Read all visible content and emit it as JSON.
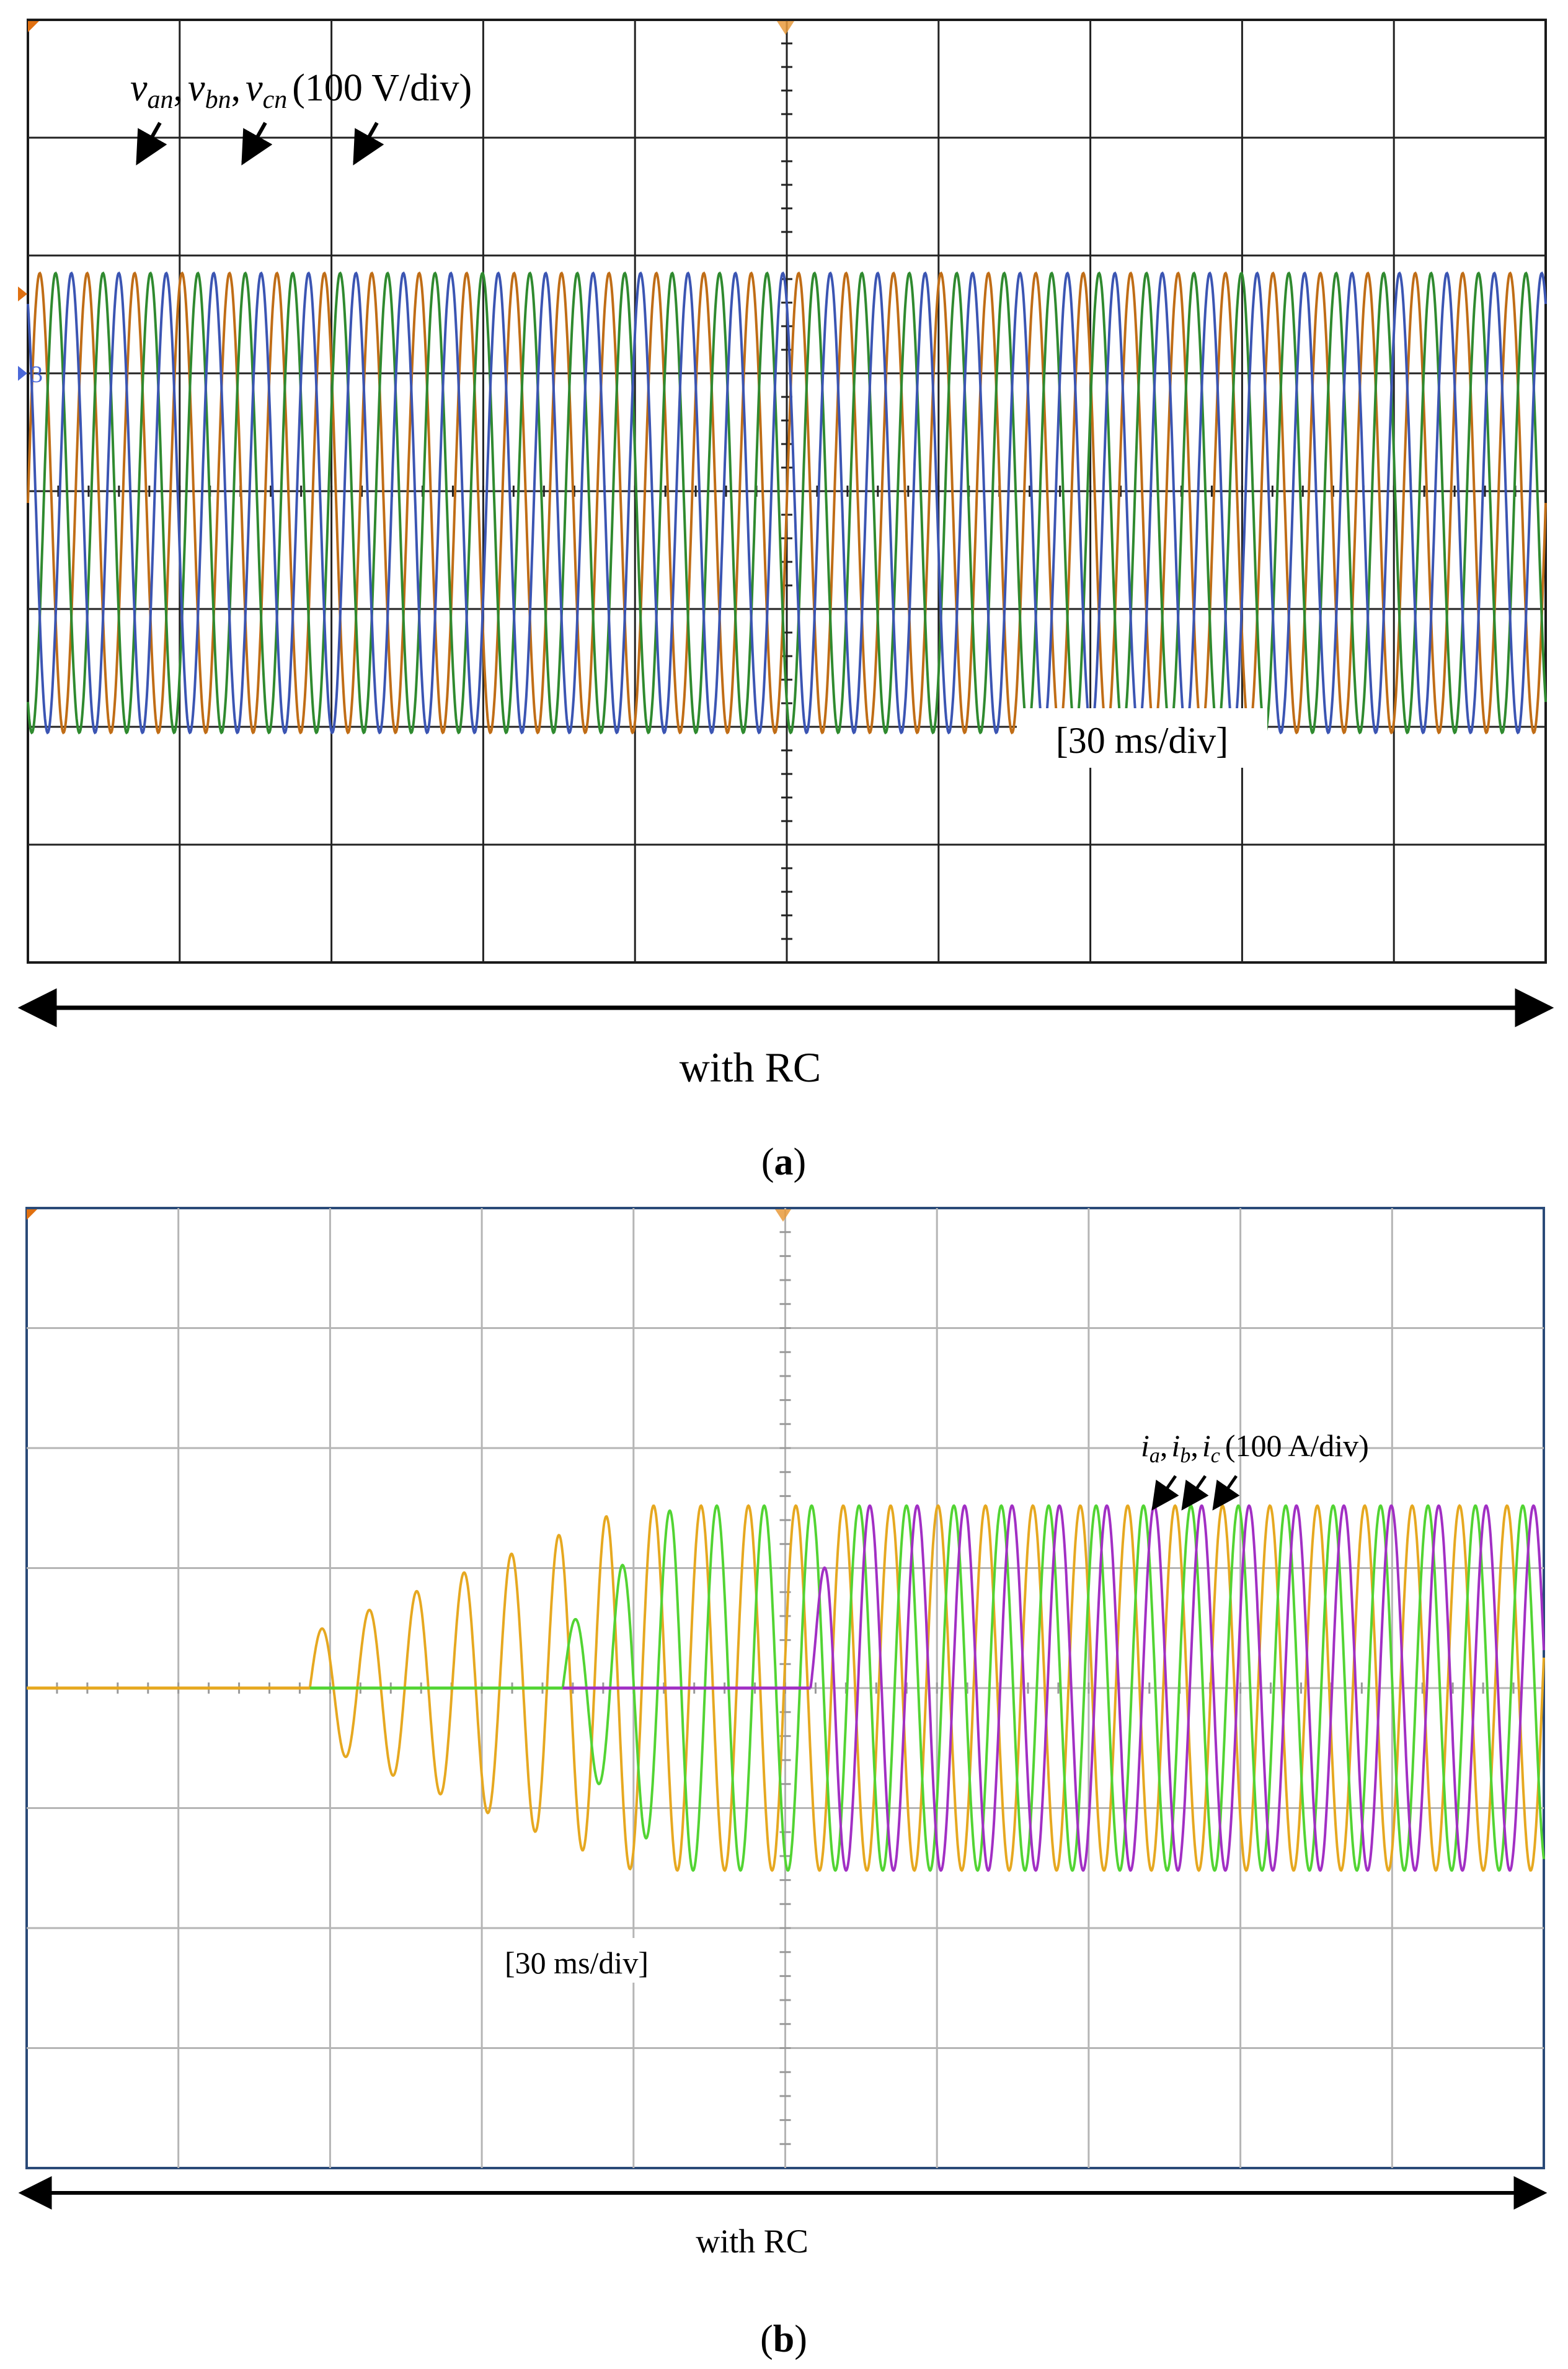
{
  "panels": {
    "a": {
      "caption_letter": "a",
      "bracket_text": "with RC",
      "timebase_label": "[30 ms/div]"
    },
    "b": {
      "caption_letter": "b",
      "bracket_text": "with RC",
      "timebase_label": "[30 ms/div]"
    }
  },
  "chart_data": [
    {
      "type": "line",
      "panel": "a",
      "title": "",
      "xlabel": "",
      "ylabel": "",
      "grid": true,
      "grid_divisions": {
        "x": 10,
        "y": 8
      },
      "x_scale": "30 ms/div",
      "y_scale": "100 V/div",
      "xlim": [
        0,
        300
      ],
      "x_unit": "ms",
      "ylim": [
        -300,
        500
      ],
      "y_unit": "V",
      "annotation": {
        "series_labels": [
          {
            "base": "v",
            "sub": "an"
          },
          {
            "base": "v",
            "sub": "bn"
          },
          {
            "base": "v",
            "sub": "cn"
          }
        ],
        "scale_text": "(100 V/div)"
      },
      "sine": {
        "cycles": 32,
        "amplitude_V": 195,
        "offset_V": 90,
        "x_start_ms": 0,
        "x_end_ms": 300
      },
      "series": [
        {
          "name": "van",
          "color": "#c06d16",
          "phase_deg": 0
        },
        {
          "name": "vbn",
          "color": "#2f8a2f",
          "phase_deg": -120
        },
        {
          "name": "vcn",
          "color": "#3b55b3",
          "phase_deg": 120
        }
      ]
    },
    {
      "type": "line",
      "panel": "b",
      "title": "",
      "xlabel": "",
      "ylabel": "",
      "grid": true,
      "grid_divisions": {
        "x": 10,
        "y": 8
      },
      "x_scale": "30 ms/div",
      "y_scale": "100 A/div",
      "xlim": [
        0,
        300
      ],
      "x_unit": "ms",
      "ylim": [
        -400,
        400
      ],
      "y_unit": "A",
      "annotation": {
        "series_labels": [
          {
            "base": "i",
            "sub": "a"
          },
          {
            "base": "i",
            "sub": "b"
          },
          {
            "base": "i",
            "sub": "c"
          }
        ],
        "scale_text": "(100 A/div)"
      },
      "sine": {
        "cycles_per_div": 3.2,
        "amplitude_A": 152
      },
      "series": [
        {
          "name": "ia",
          "color": "#e6a820",
          "phase_deg": 0,
          "start_ms": 56,
          "flat_from_ms": 0,
          "ramp_ms": [
            56,
            120
          ]
        },
        {
          "name": "ib",
          "color": "#52d433",
          "phase_deg": -120,
          "start_ms": 106,
          "flat_from_ms": 56,
          "ramp_ms": [
            106,
            128
          ]
        },
        {
          "name": "ic",
          "color": "#a12fc4",
          "phase_deg": 120,
          "start_ms": 155,
          "flat_from_ms": 106,
          "ramp_ms": [
            155,
            160
          ]
        }
      ]
    }
  ]
}
